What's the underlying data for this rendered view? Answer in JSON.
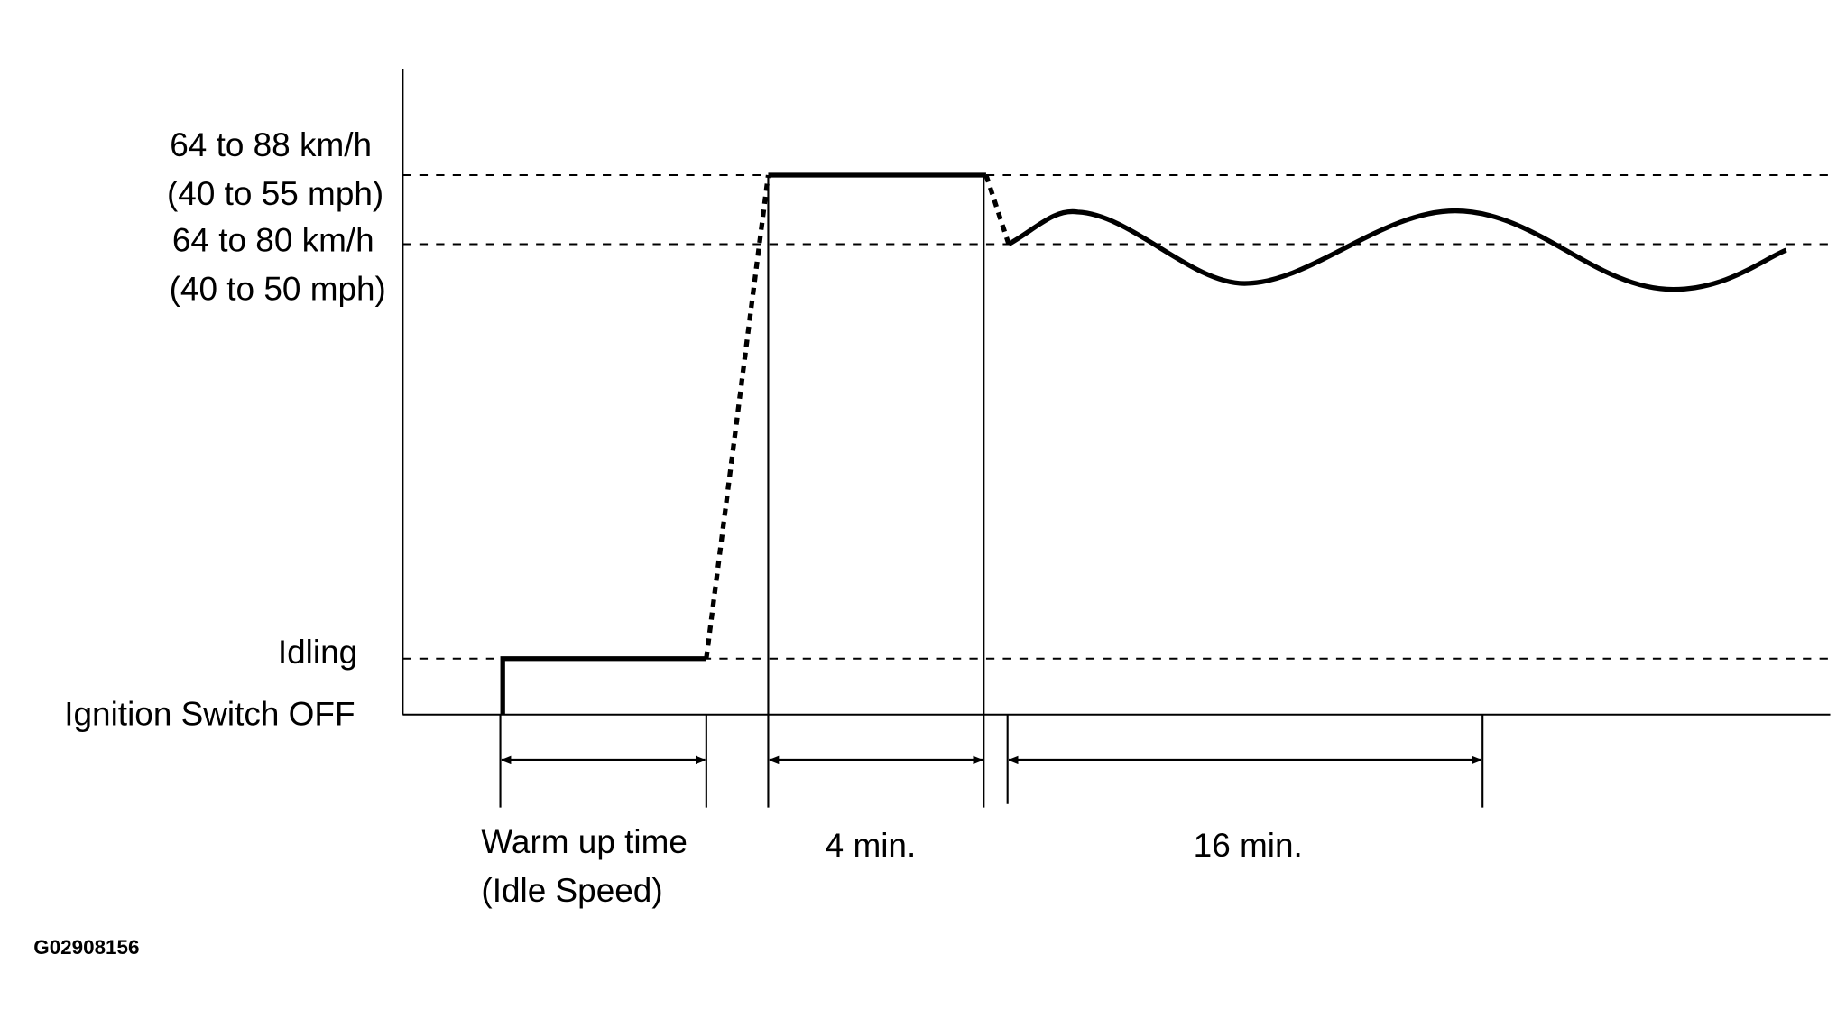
{
  "levels": [
    {
      "label": "64 to 88 km/h",
      "sublabel": "(40 to 55 mph)"
    },
    {
      "label": "64 to 80 km/h",
      "sublabel": "(40 to 50 mph)"
    },
    {
      "label": "Idling"
    },
    {
      "label": "Ignition Switch OFF"
    }
  ],
  "intervals": [
    {
      "label": "Warm up time",
      "sublabel": "(Idle Speed)"
    },
    {
      "label": "4 min."
    },
    {
      "label": "16 min."
    }
  ],
  "figure_id": "G02908156"
}
